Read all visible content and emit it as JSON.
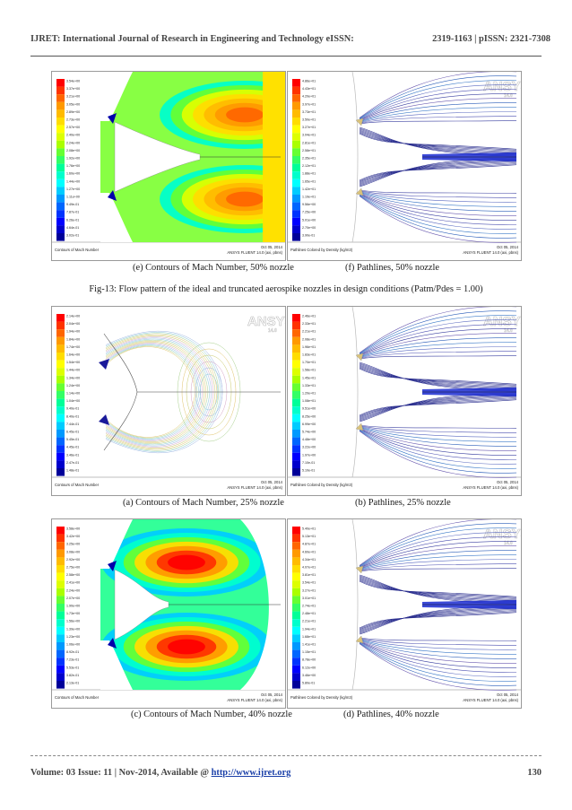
{
  "header": {
    "title": "IJRET: International Journal of Research in Engineering and Technology eISSN:",
    "issn": "2319-1163 | pISSN: 2321-7308"
  },
  "footer": {
    "volume": "Volume: 03 Issue: 11 | Nov-2014, Available @ ",
    "url": "http://www.ijret.org",
    "page": "130"
  },
  "logo": {
    "main": "ANSYS",
    "sub": "14.0"
  },
  "fig13_caption": "Fig-13: Flow pattern of the ideal and truncated aerospike nozzles in design conditions (Patm/Pdes = 1.00)",
  "panels": {
    "e": {
      "caption": "(e) Contours of Mach Number, 50% nozzle",
      "foot_left": "Contours of Mach Number",
      "foot_date": "Oct 05, 2014",
      "foot_version": "ANSYS FLUENT 14.0 (axi, pbns)",
      "legend": [
        "3.54e+00",
        "3.37e+00",
        "3.21e+00",
        "3.05e+00",
        "2.89e+00",
        "2.73e+00",
        "2.57e+00",
        "2.40e+00",
        "2.24e+00",
        "2.08e+00",
        "1.92e+00",
        "1.76e+00",
        "1.60e+00",
        "1.44e+00",
        "1.27e+00",
        "1.11e+00",
        "9.49e-01",
        "7.87e-01",
        "6.26e-01",
        "4.64e-01",
        "3.02e-01"
      ]
    },
    "f": {
      "caption": "(f) Pathlines, 50% nozzle",
      "foot_left": "Pathlines Colored by Density (kg/m3)",
      "foot_date": "Oct 05, 2014",
      "foot_version": "ANSYS FLUENT 14.0 (axi, pbns)",
      "legend": [
        "4.86e+01",
        "4.43e+01",
        "4.20e+01",
        "3.97e+01",
        "3.73e+01",
        "3.50e+01",
        "3.27e+01",
        "3.04e+01",
        "2.81e+01",
        "2.58e+01",
        "2.35e+01",
        "2.12e+01",
        "1.88e+01",
        "1.65e+01",
        "1.42e+01",
        "1.19e+01",
        "9.56e+00",
        "7.25e+00",
        "5.01e+00",
        "2.70e+00",
        "3.90e-01"
      ]
    },
    "a": {
      "caption": "(a) Contours of Mach Number, 25% nozzle",
      "foot_left": "Contours of Mach Number",
      "foot_date": "Oct 05, 2014",
      "foot_version": "ANSYS FLUENT 14.0 (axi, pbns)",
      "legend": [
        "2.14e+00",
        "2.04e+00",
        "1.94e+00",
        "1.84e+00",
        "1.74e+00",
        "1.64e+00",
        "1.54e+00",
        "1.44e+00",
        "1.34e+00",
        "1.24e+00",
        "1.14e+00",
        "1.04e+00",
        "9.40e-01",
        "8.40e-01",
        "7.44e-01",
        "6.45e-01",
        "5.45e-01",
        "4.45e-01",
        "3.46e-01",
        "2.47e-01",
        "1.48e-01"
      ]
    },
    "b": {
      "caption": "(b) Pathlines, 25% nozzle",
      "foot_left": "Pathlines Colored by Density (kg/m3)",
      "foot_date": "Oct 05, 2014",
      "foot_version": "ANSYS FLUENT 14.0 (axi, pbns)",
      "legend": [
        "2.46e+01",
        "2.33e+01",
        "2.21e+01",
        "2.08e+01",
        "1.96e+01",
        "1.83e+01",
        "1.70e+01",
        "1.58e+01",
        "1.45e+01",
        "1.33e+01",
        "1.20e+01",
        "1.08e+01",
        "9.51e+00",
        "8.25e+00",
        "6.99e+00",
        "5.74e+00",
        "4.48e+00",
        "3.22e+00",
        "1.97e+00",
        "7.10e-01",
        "5.10e-01"
      ]
    },
    "c": {
      "caption": "(c) Contours of Mach Number, 40% nozzle",
      "foot_left": "Contours of Mach Number",
      "foot_date": "Oct 05, 2014",
      "foot_version": "ANSYS FLUENT 14.0 (axi, pbns)",
      "legend": [
        "3.58e+00",
        "3.42e+00",
        "3.25e+00",
        "3.08e+00",
        "2.92e+00",
        "2.75e+00",
        "2.58e+00",
        "2.41e+00",
        "2.24e+00",
        "2.07e+00",
        "1.90e+00",
        "1.73e+00",
        "1.56e+00",
        "1.39e+00",
        "1.23e+00",
        "1.06e+00",
        "8.92e-01",
        "7.23e-01",
        "5.53e-01",
        "3.82e-01",
        "2.13e-01"
      ]
    },
    "d": {
      "caption": "(d) Pathlines, 40% nozzle",
      "foot_left": "Pathlines Colored by Density (kg/m3)",
      "foot_date": "Oct 05, 2014",
      "foot_version": "ANSYS FLUENT 14.0 (axi, pbns)",
      "legend": [
        "5.40e+01",
        "5.13e+01",
        "4.87e+01",
        "4.60e+01",
        "4.34e+01",
        "4.07e+01",
        "3.81e+01",
        "3.54e+01",
        "3.27e+01",
        "3.01e+01",
        "2.74e+01",
        "2.48e+01",
        "2.21e+01",
        "1.94e+01",
        "1.68e+01",
        "1.41e+01",
        "1.15e+01",
        "8.78e+00",
        "6.12e+00",
        "3.46e+00",
        "5.80e-01"
      ]
    }
  }
}
